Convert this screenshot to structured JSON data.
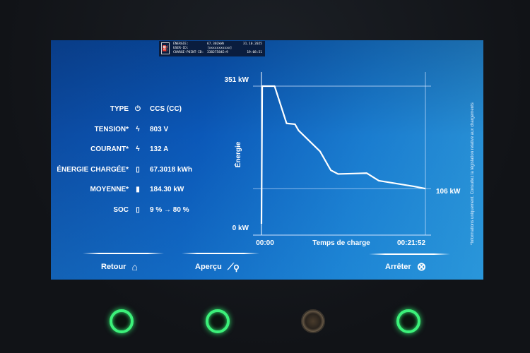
{
  "header": {
    "rows": [
      [
        "ÉNERGIE:",
        "67.302kWh",
        "31.10.2025"
      ],
      [
        "USER-ID:",
        "[xxxxxxxxxxx]",
        ""
      ],
      [
        "CHARGE-POINT-ID:",
        "33827584E+9",
        "19:08:51"
      ]
    ]
  },
  "info": [
    {
      "label": "TYPE",
      "icon": "plug-icon",
      "value": "CCS (CC)"
    },
    {
      "label": "TENSION*",
      "icon": "lightning-icon",
      "value": "803  V"
    },
    {
      "label": "COURANT*",
      "icon": "lightning-icon",
      "value": "132  A"
    },
    {
      "label": "ÉNERGIE CHARGÉE*",
      "icon": "battery-charging-icon",
      "value": "67.3018  kWh"
    },
    {
      "label": "MOYENNE*",
      "icon": "battery-icon",
      "value": "184.30  kW"
    },
    {
      "label": "SOC",
      "icon": "battery-charging-icon",
      "value": "9 % → 80 %"
    }
  ],
  "chart_data": {
    "type": "line",
    "ylabel": "Énergie",
    "xlabel": "Temps de charge",
    "ylim": [
      0,
      351
    ],
    "y_tick_labels": [
      "0 kW",
      "351 kW"
    ],
    "x_tick_labels": [
      "00:00",
      "00:21:52"
    ],
    "end_label": "106 kW",
    "grid_lines_kw": [
      351,
      106
    ],
    "points": [
      [
        "00:00",
        22
      ],
      [
        "00:06",
        351
      ],
      [
        "01:45",
        351
      ],
      [
        "03:21",
        262
      ],
      [
        "04:28",
        260
      ],
      [
        "04:57",
        245
      ],
      [
        "07:49",
        195
      ],
      [
        "09:15",
        150
      ],
      [
        "10:13",
        141
      ],
      [
        "14:03",
        143
      ],
      [
        "15:39",
        125
      ],
      [
        "20:26",
        111
      ],
      [
        "21:52",
        106
      ]
    ],
    "line_color": "#ffffff"
  },
  "side_note": "*Informations uniquement. Consultez la législation relative aux chargements",
  "nav": {
    "back": "Retour",
    "overview": "Aperçu",
    "stop": "Arrêter"
  }
}
